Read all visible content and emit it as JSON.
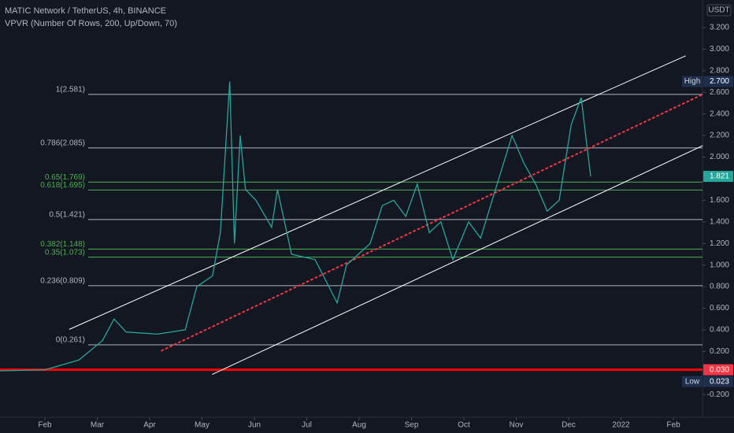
{
  "chart_data": {
    "type": "line",
    "title": "MATIC Network / TetherUS, 4h, BINANCE",
    "subtitle": "VPVR (Number Of Rows, 200, Up/Down, 70)",
    "currency": "USDT",
    "xlim": [
      0.143,
      13.556
    ],
    "ylim": [
      -0.41,
      3.455
    ],
    "xticks": [
      {
        "value": 1,
        "label": "Feb"
      },
      {
        "value": 2,
        "label": "Mar"
      },
      {
        "value": 3,
        "label": "Apr"
      },
      {
        "value": 4,
        "label": "May"
      },
      {
        "value": 5,
        "label": "Jun"
      },
      {
        "value": 6,
        "label": "Jul"
      },
      {
        "value": 7,
        "label": "Aug"
      },
      {
        "value": 8,
        "label": "Sep"
      },
      {
        "value": 9,
        "label": "Oct"
      },
      {
        "value": 10,
        "label": "Nov"
      },
      {
        "value": 11,
        "label": "Dec"
      },
      {
        "value": 12,
        "label": "2022"
      },
      {
        "value": 13,
        "label": "Feb"
      }
    ],
    "yticks": [
      {
        "value": 3.2,
        "label": "3.200"
      },
      {
        "value": 3.0,
        "label": "3.000"
      },
      {
        "value": 2.8,
        "label": "2.800"
      },
      {
        "value": 2.6,
        "label": "2.600"
      },
      {
        "value": 2.4,
        "label": "2.400"
      },
      {
        "value": 2.2,
        "label": "2.200"
      },
      {
        "value": 2.0,
        "label": "2.000"
      },
      {
        "value": 1.6,
        "label": "1.600"
      },
      {
        "value": 1.4,
        "label": "1.400"
      },
      {
        "value": 1.2,
        "label": "1.200"
      },
      {
        "value": 1.0,
        "label": "1.000"
      },
      {
        "value": 0.8,
        "label": "0.800"
      },
      {
        "value": 0.6,
        "label": "0.600"
      },
      {
        "value": 0.4,
        "label": "0.400"
      },
      {
        "value": 0.2,
        "label": "0.200"
      },
      {
        "value": -0.2,
        "label": "-0.200"
      }
    ],
    "series": [
      {
        "color": "#26a69a",
        "x": [
          0.14,
          1.0,
          1.65,
          2.1,
          2.32,
          2.55,
          3.15,
          3.68,
          3.9,
          4.2,
          4.35,
          4.53,
          4.62,
          4.73,
          4.83,
          5.03,
          5.33,
          5.44,
          5.71,
          6.16,
          6.58,
          6.76,
          7.21,
          7.44,
          7.66,
          7.89,
          8.11,
          8.34,
          8.56,
          8.79,
          9.09,
          9.32,
          9.54,
          9.92,
          10.14,
          10.37,
          10.59,
          10.82,
          11.05,
          11.24,
          11.35,
          11.42
        ],
        "values": [
          0.02,
          0.03,
          0.12,
          0.3,
          0.5,
          0.38,
          0.36,
          0.4,
          0.8,
          0.9,
          1.3,
          2.7,
          1.2,
          2.2,
          1.7,
          1.6,
          1.35,
          1.7,
          1.1,
          1.05,
          0.65,
          1.0,
          1.2,
          1.55,
          1.6,
          1.45,
          1.75,
          1.3,
          1.4,
          1.05,
          1.4,
          1.25,
          1.6,
          2.2,
          1.95,
          1.75,
          1.5,
          1.6,
          2.3,
          2.55,
          2.1,
          1.821
        ]
      }
    ],
    "fib_levels": [
      {
        "value": 2.581,
        "label": "1(2.581)",
        "color": "#b2b5be"
      },
      {
        "value": 2.085,
        "label": "0.786(2.085)",
        "color": "#b2b5be"
      },
      {
        "value": 1.769,
        "label": "0.65(1.769)",
        "color": "#4caf50"
      },
      {
        "value": 1.695,
        "label": "0.618(1.695)",
        "color": "#4caf50"
      },
      {
        "value": 1.421,
        "label": "0.5(1.421)",
        "color": "#b2b5be"
      },
      {
        "value": 1.148,
        "label": "0.382(1.148)",
        "color": "#4caf50"
      },
      {
        "value": 1.073,
        "label": "0.35(1.073)",
        "color": "#4caf50"
      },
      {
        "value": 0.809,
        "label": "0.236(0.809)",
        "color": "#b2b5be"
      },
      {
        "value": 0.261,
        "label": "0(0.261)",
        "color": "#b2b5be"
      }
    ],
    "trend_lines": [
      {
        "x": [
          1.47,
          13.23
        ],
        "y": [
          0.405,
          2.937
        ],
        "color": "#ffffff",
        "dashed": false
      },
      {
        "x": [
          4.2,
          13.556
        ],
        "y": [
          -0.012,
          2.105
        ],
        "color": "#ffffff",
        "dashed": false
      },
      {
        "x": [
          3.23,
          13.556
        ],
        "y": [
          0.207,
          2.58
        ],
        "color": "#f23645",
        "dashed": true
      }
    ],
    "horizontal_line": {
      "value": 0.03,
      "color": "#ff0000"
    },
    "price_labels": [
      {
        "name": "High",
        "value": 2.7,
        "label": "2.700",
        "color": "#1e2f4d"
      },
      {
        "value": 1.821,
        "label": "1.821",
        "color": "#26a69a"
      },
      {
        "value": 0.03,
        "label": "0.030",
        "color": "#f23645"
      },
      {
        "name": "Low",
        "value": 0.023,
        "label": "0.023",
        "color": "#1e2f4d"
      }
    ]
  }
}
